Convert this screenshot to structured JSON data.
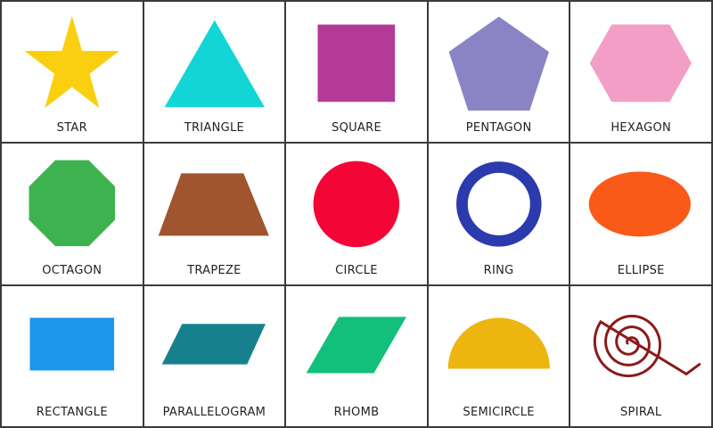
{
  "shapes": [
    {
      "label": "STAR",
      "icon": "star-icon",
      "color": "#F9CF0F"
    },
    {
      "label": "TRIANGLE",
      "icon": "triangle-icon",
      "color": "#12D6D6"
    },
    {
      "label": "SQUARE",
      "icon": "square-icon",
      "color": "#B43A98"
    },
    {
      "label": "PENTAGON",
      "icon": "pentagon-icon",
      "color": "#8B84C4"
    },
    {
      "label": "HEXAGON",
      "icon": "hexagon-icon",
      "color": "#F39EC7"
    },
    {
      "label": "OCTAGON",
      "icon": "octagon-icon",
      "color": "#3DB34F"
    },
    {
      "label": "TRAPEZE",
      "icon": "trapeze-icon",
      "color": "#A0552F"
    },
    {
      "label": "CIRCLE",
      "icon": "circle-icon",
      "color": "#F30536"
    },
    {
      "label": "RING",
      "icon": "ring-icon",
      "color": "#2B3BAE"
    },
    {
      "label": "ELLIPSE",
      "icon": "ellipse-icon",
      "color": "#FA5A17"
    },
    {
      "label": "RECTANGLE",
      "icon": "rectangle-icon",
      "color": "#1A96EB"
    },
    {
      "label": "PARALLELOGRAM",
      "icon": "parallelogram-icon",
      "color": "#17808F"
    },
    {
      "label": "RHOMB",
      "icon": "rhomb-icon",
      "color": "#12C07B"
    },
    {
      "label": "SEMICIRCLE",
      "icon": "semicircle-icon",
      "color": "#EDB50F"
    },
    {
      "label": "SPIRAL",
      "icon": "spiral-icon",
      "color": "#8B1A1A"
    }
  ]
}
